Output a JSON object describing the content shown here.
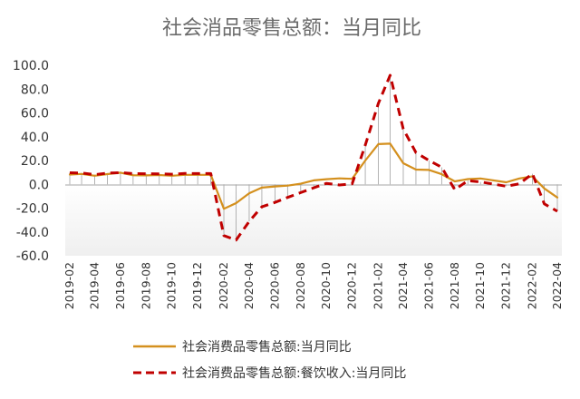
{
  "chart_data": {
    "type": "line",
    "title": "社会消品零售总额：当月同比",
    "y_ticks": [
      "100.0",
      "80.0",
      "60.0",
      "40.0",
      "20.0",
      "0.0",
      "-20.0",
      "-40.0",
      "-60.0"
    ],
    "ylim": [
      -60,
      100
    ],
    "x_tick_labels": [
      "2019-02",
      "2019-04",
      "2019-06",
      "2019-08",
      "2019-10",
      "2019-12",
      "2020-02",
      "2020-04",
      "2020-06",
      "2020-08",
      "2020-10",
      "2020-12",
      "2021-02",
      "2021-04",
      "2021-06",
      "2021-08",
      "2021-10",
      "2021-12",
      "2022-02",
      "2022-04"
    ],
    "x": [
      "2019-02",
      "2019-03",
      "2019-04",
      "2019-05",
      "2019-06",
      "2019-07",
      "2019-08",
      "2019-09",
      "2019-10",
      "2019-11",
      "2019-12",
      "2020-01",
      "2020-02",
      "2020-03",
      "2020-04",
      "2020-05",
      "2020-06",
      "2020-07",
      "2020-08",
      "2020-09",
      "2020-10",
      "2020-11",
      "2020-12",
      "2021-01",
      "2021-02",
      "2021-03",
      "2021-04",
      "2021-05",
      "2021-06",
      "2021-07",
      "2021-08",
      "2021-09",
      "2021-10",
      "2021-12",
      "2022-01",
      "2022-02",
      "2022-03",
      "2022-04"
    ],
    "series": [
      {
        "name": "社会消费品零售总额:当月同比",
        "color": "#d4901e",
        "style": "solid",
        "values": [
          8.2,
          8.7,
          7.2,
          8.6,
          9.8,
          7.6,
          7.5,
          7.8,
          7.2,
          8.0,
          8.0,
          8.0,
          -20.5,
          -15.8,
          -7.5,
          -2.8,
          -1.8,
          -1.1,
          0.5,
          3.3,
          4.3,
          5.0,
          4.6,
          20.0,
          33.8,
          34.2,
          17.7,
          12.4,
          12.1,
          8.5,
          2.5,
          4.4,
          4.9,
          1.7,
          4.9,
          6.7,
          -3.5,
          -11.1
        ]
      },
      {
        "name": "社会消费品零售总额:餐饮收入:当月同比",
        "color": "#c00000",
        "style": "dashed",
        "values": [
          9.7,
          9.5,
          8.1,
          9.4,
          9.8,
          9.0,
          8.9,
          8.8,
          8.5,
          9.1,
          9.0,
          9.0,
          -43.1,
          -46.8,
          -31.1,
          -18.9,
          -15.2,
          -11.0,
          -7.0,
          -2.9,
          0.8,
          -0.6,
          0.4,
          33.0,
          68.0,
          91.6,
          46.4,
          26.6,
          20.0,
          14.3,
          -4.5,
          3.1,
          2.0,
          -1.6,
          0.4,
          8.9,
          -16.4,
          -22.7
        ]
      }
    ],
    "legend_position": "bottom",
    "grid": false
  }
}
